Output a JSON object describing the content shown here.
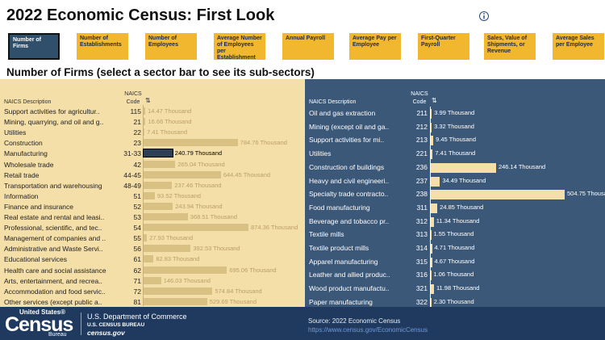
{
  "header": {
    "title": "2022 Economic Census: First Look"
  },
  "tabs": [
    "Number of Firms",
    "Number of Establishments",
    "Number of Employees",
    "Average Number of Employees per Establishment",
    "Annual Payroll",
    "Average Pay per Employee",
    "First-Quarter Payroll",
    "Sales, Value of Shipments, or Revenue",
    "Average Sales per Employee"
  ],
  "subtitle": "Number of Firms (select a sector bar to see its sub-sectors)",
  "sectors": {
    "columns": [
      "NAICS Description",
      "NAICS Code"
    ],
    "rows": [
      {
        "name": "Support activities for agricultur..",
        "code": "115",
        "value": 14.47,
        "value_label": "14.47 Thousand"
      },
      {
        "name": "Mining, quarrying, and oil and g..",
        "code": "21",
        "value": 16.66,
        "value_label": "16.66 Thousand"
      },
      {
        "name": "Utilities",
        "code": "22",
        "value": 7.41,
        "value_label": "7.41 Thousand"
      },
      {
        "name": "Construction",
        "code": "23",
        "value": 784.76,
        "value_label": "784.76 Thousand"
      },
      {
        "name": "Manufacturing",
        "code": "31-33",
        "value": 240.79,
        "value_label": "240.79 Thousand",
        "selected": true
      },
      {
        "name": "Wholesale trade",
        "code": "42",
        "value": 265.04,
        "value_label": "265.04 Thousand"
      },
      {
        "name": "Retail trade",
        "code": "44-45",
        "value": 644.45,
        "value_label": "644.45 Thousand"
      },
      {
        "name": "Transportation and warehousing",
        "code": "48-49",
        "value": 237.46,
        "value_label": "237.46 Thousand"
      },
      {
        "name": "Information",
        "code": "51",
        "value": 93.52,
        "value_label": "93.52 Thousand"
      },
      {
        "name": "Finance and insurance",
        "code": "52",
        "value": 243.94,
        "value_label": "243.94 Thousand"
      },
      {
        "name": "Real estate and rental and leasi..",
        "code": "53",
        "value": 368.51,
        "value_label": "368.51 Thousand"
      },
      {
        "name": "Professional, scientific, and tec..",
        "code": "54",
        "value": 874.36,
        "value_label": "874.36 Thousand"
      },
      {
        "name": "Management of companies and ..",
        "code": "55",
        "value": 27.93,
        "value_label": "27.93 Thousand"
      },
      {
        "name": "Administrative and Waste Servi..",
        "code": "56",
        "value": 392.53,
        "value_label": "392.53 Thousand"
      },
      {
        "name": "Educational services",
        "code": "61",
        "value": 82.83,
        "value_label": "82.83 Thousand"
      },
      {
        "name": "Health care and social assistance",
        "code": "62",
        "value": 695.06,
        "value_label": "695.06 Thousand"
      },
      {
        "name": "Arts, entertainment, and recrea..",
        "code": "71",
        "value": 146.03,
        "value_label": "146.03 Thousand"
      },
      {
        "name": "Accommodation and food servic..",
        "code": "72",
        "value": 574.84,
        "value_label": "574.84 Thousand"
      },
      {
        "name": "Other services (except public a..",
        "code": "81",
        "value": 529.69,
        "value_label": "529.69 Thousand"
      }
    ]
  },
  "subsectors": {
    "columns": [
      "NAICS Description",
      "NAICS Code"
    ],
    "rows": [
      {
        "name": "Oil and gas extraction",
        "code": "211",
        "value": 3.99,
        "value_label": "3.99 Thousand"
      },
      {
        "name": "Mining (except oil and ga..",
        "code": "212",
        "value": 3.32,
        "value_label": "3.32 Thousand"
      },
      {
        "name": "Support activities for mi..",
        "code": "213",
        "value": 9.45,
        "value_label": "9.45 Thousand"
      },
      {
        "name": "Utilities",
        "code": "221",
        "value": 7.41,
        "value_label": "7.41 Thousand"
      },
      {
        "name": "Construction of buildings",
        "code": "236",
        "value": 246.14,
        "value_label": "246.14 Thousand"
      },
      {
        "name": "Heavy and civil engineeri..",
        "code": "237",
        "value": 34.49,
        "value_label": "34.49 Thousand"
      },
      {
        "name": "Specialty trade contracto..",
        "code": "238",
        "value": 504.75,
        "value_label": "504.75 Thousand"
      },
      {
        "name": "Food manufacturing",
        "code": "311",
        "value": 24.85,
        "value_label": "24.85 Thousand"
      },
      {
        "name": "Beverage and tobacco pr..",
        "code": "312",
        "value": 11.34,
        "value_label": "11.34 Thousand"
      },
      {
        "name": "Textile mills",
        "code": "313",
        "value": 1.55,
        "value_label": "1.55 Thousand"
      },
      {
        "name": "Textile product mills",
        "code": "314",
        "value": 4.71,
        "value_label": "4.71 Thousand"
      },
      {
        "name": "Apparel manufacturing",
        "code": "315",
        "value": 4.67,
        "value_label": "4.67 Thousand"
      },
      {
        "name": "Leather and allied produc..",
        "code": "316",
        "value": 1.06,
        "value_label": "1.06 Thousand"
      },
      {
        "name": "Wood product manufactu..",
        "code": "321",
        "value": 11.98,
        "value_label": "11.98 Thousand"
      },
      {
        "name": "Paper manufacturing",
        "code": "322",
        "value": 2.3,
        "value_label": "2.30 Thousand"
      }
    ]
  },
  "footer": {
    "logo_top": "United States®",
    "logo_main": "Census",
    "logo_bottom": "Bureau",
    "dept": "U.S. Department of Commerce",
    "bureau": "U.S. CENSUS BUREAU",
    "site": "census.gov",
    "source": "Source: 2022 Economic Census",
    "link": "https://www.census.gov/EconomicCensus"
  }
}
